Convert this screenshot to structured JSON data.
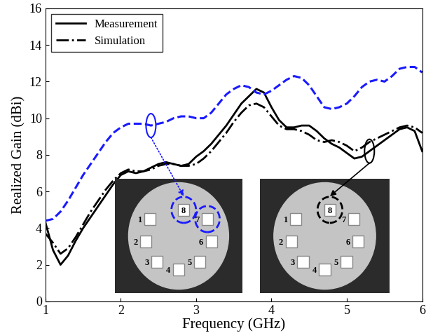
{
  "chart_data": {
    "type": "line",
    "x_label": "Frequency (GHz)",
    "y_label": "Realized Gain (dBi)",
    "x": [
      1.0,
      1.1,
      1.2,
      1.3,
      1.4,
      1.5,
      1.6,
      1.7,
      1.8,
      1.9,
      2.0,
      2.1,
      2.2,
      2.3,
      2.4,
      2.5,
      2.6,
      2.7,
      2.8,
      2.9,
      3.0,
      3.1,
      3.2,
      3.3,
      3.4,
      3.5,
      3.6,
      3.7,
      3.8,
      3.9,
      4.0,
      4.1,
      4.2,
      4.3,
      4.4,
      4.5,
      4.6,
      4.7,
      4.8,
      4.9,
      5.0,
      5.1,
      5.2,
      5.3,
      5.4,
      5.5,
      5.6,
      5.7,
      5.8,
      5.9,
      6.0
    ],
    "series": [
      {
        "name": "Measurement",
        "color": "#000000",
        "line_style": "solid",
        "values": [
          4.3,
          2.8,
          2.0,
          2.5,
          3.3,
          4.0,
          4.6,
          5.2,
          5.8,
          6.4,
          6.9,
          7.1,
          7.0,
          7.1,
          7.3,
          7.5,
          7.6,
          7.5,
          7.4,
          7.5,
          7.9,
          8.2,
          8.6,
          9.1,
          9.6,
          10.2,
          10.8,
          11.2,
          11.6,
          11.4,
          10.6,
          9.9,
          9.5,
          9.5,
          9.6,
          9.6,
          9.3,
          8.9,
          8.6,
          8.4,
          8.1,
          7.8,
          7.9,
          8.2,
          8.5,
          8.8,
          9.1,
          9.4,
          9.5,
          9.3,
          8.2
        ]
      },
      {
        "name": "Simulation",
        "color": "#000000",
        "line_style": "dashdot",
        "values": [
          3.7,
          3.2,
          2.6,
          2.9,
          3.5,
          4.2,
          4.9,
          5.5,
          6.1,
          6.6,
          7.0,
          7.2,
          7.1,
          7.1,
          7.2,
          7.4,
          7.5,
          7.5,
          7.4,
          7.4,
          7.5,
          7.8,
          8.2,
          8.7,
          9.2,
          9.8,
          10.3,
          10.7,
          10.8,
          10.6,
          10.1,
          9.6,
          9.4,
          9.4,
          9.3,
          9.1,
          8.8,
          8.7,
          8.8,
          8.7,
          8.5,
          8.2,
          8.4,
          8.7,
          8.9,
          9.1,
          9.3,
          9.5,
          9.6,
          9.5,
          9.2
        ]
      },
      {
        "color": "#1a1aff",
        "line_style": "dashed",
        "values": [
          4.4,
          4.5,
          4.9,
          5.5,
          6.2,
          6.9,
          7.5,
          8.1,
          8.7,
          9.2,
          9.5,
          9.7,
          9.7,
          9.7,
          9.6,
          9.7,
          9.8,
          10.0,
          10.1,
          10.1,
          10.0,
          10.0,
          10.3,
          10.8,
          11.3,
          11.6,
          11.8,
          11.7,
          11.4,
          11.3,
          11.5,
          11.8,
          12.1,
          12.3,
          12.2,
          11.8,
          11.2,
          10.6,
          10.5,
          10.6,
          10.8,
          11.2,
          11.7,
          12.0,
          12.1,
          12.0,
          12.3,
          12.7,
          12.8,
          12.8,
          12.5
        ]
      }
    ],
    "xlim": [
      1,
      6
    ],
    "xticks": [
      1,
      2,
      3,
      4,
      5,
      6
    ],
    "ylim": [
      0,
      16
    ],
    "yticks": [
      0,
      2,
      4,
      6,
      8,
      10,
      12,
      14,
      16
    ],
    "legend": "upper left",
    "insets": [
      {
        "color": "#1a1aff",
        "elements": [
          "1",
          "2",
          "3",
          "4",
          "5",
          "6",
          "7",
          "8"
        ],
        "highlighted": [
          "8",
          "7"
        ]
      },
      {
        "color": "#000000",
        "elements": [
          "1",
          "2",
          "3",
          "4",
          "5",
          "6",
          "7",
          "8"
        ],
        "highlighted": [
          "8"
        ]
      }
    ]
  }
}
